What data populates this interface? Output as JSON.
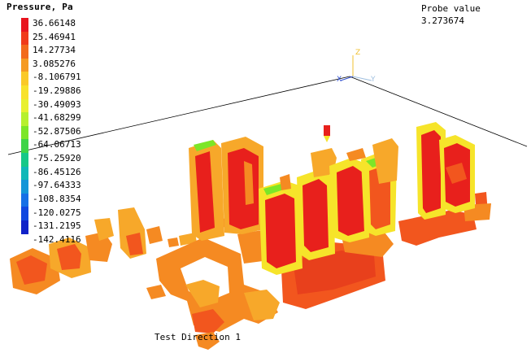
{
  "legend": {
    "title": "Pressure, Pa",
    "values": [
      "36.66148",
      "25.46941",
      "14.27734",
      "3.085276",
      "-8.106791",
      "-19.29886",
      "-30.49093",
      "-41.68299",
      "-52.87506",
      "-64.06713",
      "-75.25920",
      "-86.45126",
      "-97.64333",
      "-108.8354",
      "-120.0275",
      "-131.2195",
      "-142.4116"
    ],
    "colors": [
      "#e8141e",
      "#f03a1a",
      "#f26a1c",
      "#f59a22",
      "#fac928",
      "#f8e22c",
      "#e8f030",
      "#b6f02e",
      "#7ce628",
      "#3ed448",
      "#16c888",
      "#10b8b8",
      "#1496d8",
      "#1670e6",
      "#1048e0",
      "#1022c8"
    ]
  },
  "probe": {
    "label": "Probe value",
    "value": "3.273674"
  },
  "axes": {
    "z": "Z",
    "x": "X",
    "y": "Y"
  },
  "direction": "Test Direction 1",
  "colors": {
    "red": "#e8201c",
    "orange_red": "#f2561e",
    "orange": "#f58a22",
    "light_orange": "#f7a82a",
    "yellow": "#f6e42a",
    "green": "#7ce628"
  }
}
